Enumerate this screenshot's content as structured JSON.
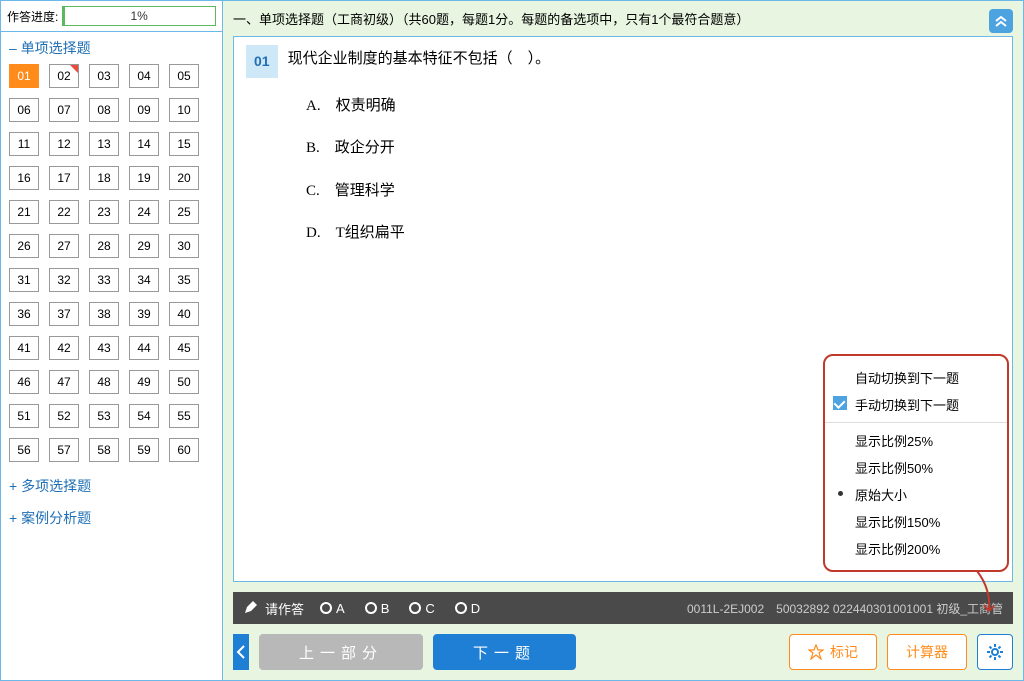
{
  "progress": {
    "label": "作答进度:",
    "percent": 1,
    "text": "1%",
    "fill_color": "#5cb85c"
  },
  "sections": {
    "single": {
      "title": "单项选择题",
      "expanded": true
    },
    "multi": {
      "title": "多项选择题",
      "expanded": false
    },
    "case": {
      "title": "案例分析题",
      "expanded": false
    }
  },
  "question_buttons": {
    "count": 60,
    "active": 1,
    "marked": [
      2
    ]
  },
  "header": {
    "text": "一、单项选择题（工商初级）（共60题，每题1分。每题的备选项中，只有1个最符合题意）"
  },
  "question": {
    "number": "01",
    "text": "现代企业制度的基本特征不包括（　）。",
    "options": [
      {
        "letter": "A",
        "text": "权责明确"
      },
      {
        "letter": "B",
        "text": "政企分开"
      },
      {
        "letter": "C",
        "text": "管理科学"
      },
      {
        "letter": "D",
        "text": "T组织扁平"
      }
    ]
  },
  "answer_bar": {
    "prompt": "请作答",
    "choices": [
      "A",
      "B",
      "C",
      "D"
    ],
    "meta": "0011L-2EJ002　50032892 022440301001001 初级_工商管"
  },
  "nav": {
    "prev_label": "上一部分",
    "next_label": "下一题",
    "mark_label": "标记",
    "calc_label": "计算器"
  },
  "settings": {
    "group1": [
      {
        "text": "自动切换到下一题",
        "checked": false
      },
      {
        "text": "手动切换到下一题",
        "checked": true
      }
    ],
    "group2": [
      {
        "text": "显示比例25%",
        "dotted": false
      },
      {
        "text": "显示比例50%",
        "dotted": false
      },
      {
        "text": "原始大小",
        "dotted": true
      },
      {
        "text": "显示比例150%",
        "dotted": false
      },
      {
        "text": "显示比例200%",
        "dotted": false
      }
    ]
  },
  "colors": {
    "border": "#6cb8e8",
    "bg_green": "#e8f5e0",
    "active_orange": "#ff8c1a",
    "primary_blue": "#1f7fd4",
    "popup_border": "#c0392b"
  }
}
